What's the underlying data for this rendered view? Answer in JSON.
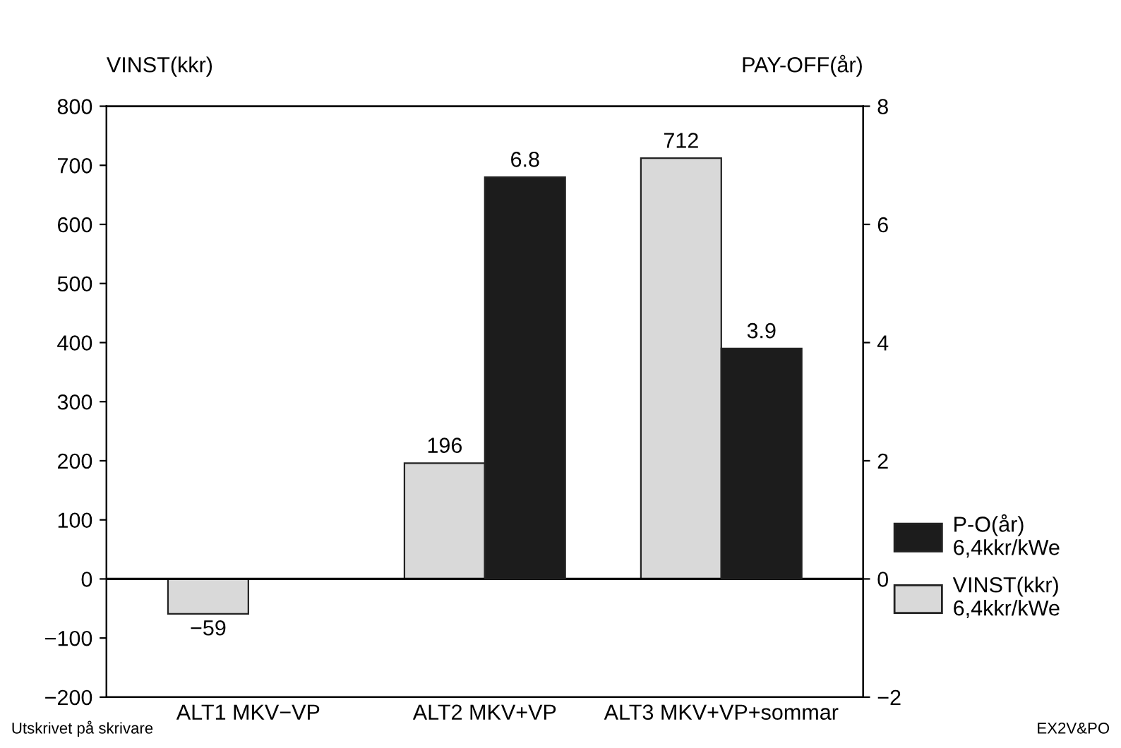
{
  "chart_data": {
    "type": "bar",
    "categories": [
      "ALT1 MKV−VP",
      "ALT2 MKV+VP",
      "ALT3 MKV+VP+sommar"
    ],
    "series": [
      {
        "name": "VINST(kkr)\n6,4kkr/kWe",
        "color": "#d9d9d9",
        "values": [
          -59,
          196,
          712
        ],
        "value_labels": [
          "−59",
          "196",
          "712"
        ]
      },
      {
        "name": "P-O(år)\n6,4kkr/kWe",
        "color": "#1c1c1c",
        "axis": "y2",
        "values": [
          null,
          6.8,
          3.9
        ],
        "value_labels": [
          null,
          "6.8",
          "3.9"
        ]
      }
    ],
    "ylabel": "VINST(kkr)",
    "y2label": "PAY-OFF(år)",
    "ylim": [
      -200,
      800
    ],
    "yticks": [
      {
        "value": -200,
        "label": "−200"
      },
      {
        "value": -100,
        "label": "−100"
      },
      0,
      100,
      200,
      300,
      400,
      500,
      600,
      700,
      800
    ],
    "y2lim": [
      -2,
      8
    ],
    "y2ticks": [
      {
        "value": -2,
        "label": "−2"
      },
      0,
      2,
      4,
      6,
      8
    ],
    "ref_lines": [
      {
        "axis": "y",
        "value": 0,
        "color": "#000000"
      }
    ],
    "legend": "right",
    "grid": false,
    "annotations": [
      "Utskrivet på skrivare",
      "EX2V&PO"
    ]
  }
}
